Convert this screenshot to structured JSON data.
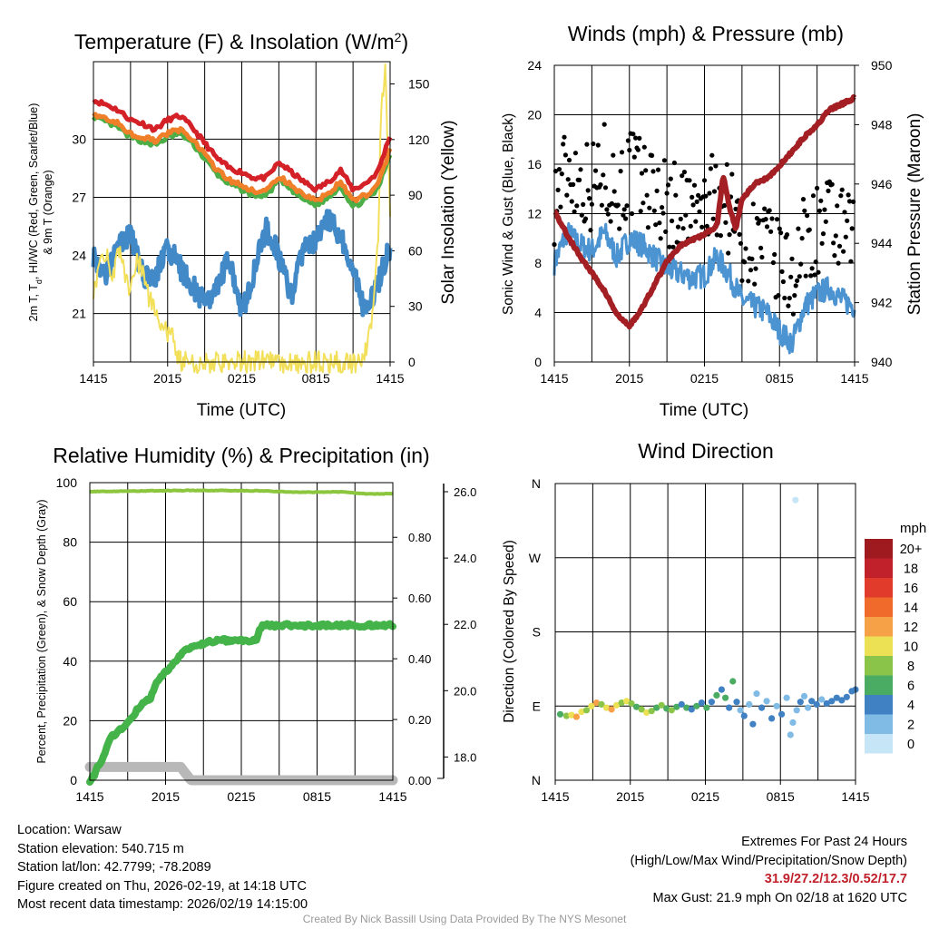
{
  "charts": {
    "temp": {
      "title": "Temperature (F) & Insolation (W/m",
      "title_sup": "2",
      "title_close": ")",
      "ylabel_lines": [
        "2m T, T",
        "d",
        ", HI/WC (Red, Green, Scarlet/Blue)",
        "& 9m T (Orange)"
      ],
      "ylabel_right": "Solar Insolation (Yellow)",
      "xlabel": "Time (UTC)"
    },
    "winds": {
      "title": "Winds (mph) & Pressure (mb)",
      "ylabel": "Sonic Wind & Gust (Blue, Black)",
      "ylabel_right": "Station Pressure (Maroon)",
      "xlabel": "Time (UTC)"
    },
    "rh": {
      "title": "Relative Humidity (%) & Precipitation (in)",
      "ylabel": "Percent, Precipitation (Green), & Snow Depth (Gray)"
    },
    "wdir": {
      "title": "Wind Direction",
      "ylabel": "Direction (Colored By Speed)",
      "legend_title": "mph"
    }
  },
  "chart_data": [
    {
      "type": "line",
      "title": "Temperature (F) & Insolation (W/m2)",
      "xlabel": "Time (UTC)",
      "x_ticks": [
        "1415",
        "2015",
        "0215",
        "0815",
        "1415"
      ],
      "x_hours": [
        0,
        6,
        12,
        18,
        24
      ],
      "ylim": [
        18.5,
        34
      ],
      "y_ticks": [
        21,
        24,
        27,
        30
      ],
      "y2lim": [
        0,
        162
      ],
      "y2_ticks": [
        0,
        30,
        60,
        90,
        120,
        150
      ],
      "series": [
        {
          "name": "2m T (Red)",
          "color": "#d42027",
          "axis": "left",
          "x": [
            0,
            1,
            2,
            3,
            4,
            5,
            6,
            7,
            8,
            9,
            10,
            11,
            12,
            13,
            14,
            15,
            16,
            17,
            18,
            19,
            20,
            21,
            22,
            23,
            24
          ],
          "values": [
            32.0,
            31.8,
            31.5,
            31.0,
            30.8,
            30.5,
            31.0,
            31.2,
            30.6,
            29.8,
            29.0,
            28.5,
            28.3,
            28.0,
            28.0,
            28.8,
            28.3,
            27.8,
            27.4,
            27.8,
            28.4,
            27.4,
            27.7,
            28.3,
            30.2
          ]
        },
        {
          "name": "9m T (Orange)",
          "color": "#f07f2a",
          "axis": "left",
          "x": [
            0,
            1,
            2,
            3,
            4,
            5,
            6,
            7,
            8,
            9,
            10,
            11,
            12,
            13,
            14,
            15,
            16,
            17,
            18,
            19,
            20,
            21,
            22,
            23,
            24
          ],
          "values": [
            31.3,
            31.1,
            30.8,
            30.3,
            30.1,
            29.9,
            30.3,
            30.5,
            30.0,
            29.2,
            28.4,
            27.9,
            27.6,
            27.3,
            27.3,
            28.1,
            27.6,
            27.1,
            26.8,
            27.2,
            27.8,
            26.8,
            27.1,
            27.6,
            29.5
          ]
        },
        {
          "name": "Td (Green)",
          "color": "#4cae46",
          "axis": "left",
          "x": [
            0,
            1,
            2,
            3,
            4,
            5,
            6,
            7,
            8,
            9,
            10,
            11,
            12,
            13,
            14,
            15,
            16,
            17,
            18,
            19,
            20,
            21,
            22,
            23,
            24
          ],
          "values": [
            31.1,
            30.9,
            30.6,
            30.1,
            29.9,
            29.7,
            30.1,
            30.3,
            29.8,
            29.0,
            28.2,
            27.7,
            27.4,
            27.1,
            27.1,
            27.9,
            27.4,
            26.9,
            26.6,
            27.0,
            27.6,
            26.5,
            26.9,
            27.4,
            29.3
          ]
        },
        {
          "name": "Wind Chill (Blue)",
          "color": "#4289c8",
          "axis": "left",
          "x": [
            0,
            1,
            2,
            3,
            4,
            5,
            6,
            7,
            8,
            9,
            10,
            11,
            12,
            13,
            14,
            15,
            16,
            17,
            18,
            19,
            20,
            21,
            22,
            23,
            24
          ],
          "values": [
            24.0,
            23.0,
            24.5,
            25.2,
            23.0,
            22.8,
            24.5,
            23.4,
            22.4,
            21.5,
            22.2,
            24.0,
            21.0,
            23.2,
            25.4,
            24.0,
            21.8,
            24.3,
            24.8,
            26.0,
            25.0,
            23.4,
            21.0,
            22.5,
            24.5
          ]
        },
        {
          "name": "Solar Insolation (Yellow)",
          "color": "#f2e05b",
          "axis": "right",
          "x": [
            0,
            0.5,
            1,
            1.5,
            2,
            2.5,
            3,
            3.5,
            4,
            4.5,
            5,
            5.5,
            6,
            6.5,
            7,
            8,
            10,
            12,
            14,
            16,
            18,
            20,
            21.5,
            22,
            22.5,
            23,
            23.3,
            23.6,
            24
          ],
          "values": [
            40,
            52,
            60,
            45,
            62,
            48,
            38,
            55,
            48,
            35,
            30,
            20,
            14,
            12,
            0,
            0,
            0,
            0,
            0,
            0,
            0,
            0,
            0,
            5,
            20,
            60,
            140,
            160,
            80
          ]
        }
      ]
    },
    {
      "type": "line",
      "title": "Winds (mph) & Pressure (mb)",
      "xlabel": "Time (UTC)",
      "x_ticks": [
        "1415",
        "2015",
        "0215",
        "0815",
        "1415"
      ],
      "x_hours": [
        0,
        6,
        12,
        18,
        24
      ],
      "ylim": [
        0,
        24
      ],
      "y_ticks": [
        0,
        4,
        8,
        12,
        16,
        20,
        24
      ],
      "y2lim": [
        940,
        950
      ],
      "y2_ticks": [
        940,
        942,
        944,
        946,
        948,
        950
      ],
      "series": [
        {
          "name": "Sonic Wind (Blue)",
          "color": "#4c93d1",
          "axis": "left",
          "x": [
            0,
            1,
            2,
            3,
            4,
            5,
            6,
            7,
            8,
            9,
            10,
            11,
            12,
            13,
            14,
            15,
            16,
            17,
            18,
            19,
            20,
            21,
            22,
            23,
            24
          ],
          "values": [
            8.0,
            10.5,
            9.5,
            9.0,
            10.5,
            8.5,
            10.0,
            9.5,
            8.5,
            7.5,
            7.2,
            6.8,
            7.0,
            8.5,
            7.0,
            5.0,
            4.5,
            4.0,
            2.5,
            1.5,
            4.5,
            5.5,
            6.0,
            5.0,
            4.5
          ]
        },
        {
          "name": "Station Pressure (Maroon)",
          "color": "#a31f23",
          "axis": "right",
          "x": [
            0,
            1,
            2,
            3,
            4,
            5,
            6,
            7,
            8,
            9,
            10,
            11,
            12,
            13,
            13.5,
            14,
            14.5,
            15,
            16,
            17,
            18,
            19,
            20,
            21,
            22,
            23,
            24
          ],
          "values": [
            945.1,
            944.3,
            943.6,
            943.0,
            942.4,
            941.6,
            941.2,
            941.8,
            942.6,
            943.4,
            943.9,
            944.1,
            944.3,
            944.6,
            946.3,
            945.2,
            944.5,
            945.5,
            946.0,
            946.2,
            946.6,
            947.1,
            947.6,
            948.0,
            948.5,
            948.7,
            948.9
          ]
        }
      ],
      "gust_series": {
        "name": "Gust (Black)",
        "color": "#000000",
        "count": 240,
        "max_mph": 21.9
      }
    },
    {
      "type": "line",
      "title": "Relative Humidity (%) & Precipitation (in)",
      "x_ticks": [
        "1415",
        "2015",
        "0215",
        "0815",
        "1415"
      ],
      "x_hours": [
        0,
        6,
        12,
        18,
        24
      ],
      "ylim": [
        0,
        100
      ],
      "y_ticks": [
        0,
        20,
        40,
        60,
        80,
        100
      ],
      "y2_ticks": [
        "0.00",
        "0.20",
        "0.40",
        "0.60",
        "0.80"
      ],
      "y2_values": [
        0,
        0.2,
        0.4,
        0.6,
        0.8
      ],
      "y3_ticks": [
        "18.0",
        "20.0",
        "22.0",
        "24.0",
        "26.0"
      ],
      "y3_values": [
        18,
        20,
        22,
        24,
        26
      ],
      "series": [
        {
          "name": "Relative Humidity (Green)",
          "color": "#8cc63f",
          "axis": "left",
          "x": [
            0,
            4,
            8,
            12,
            14,
            16,
            18,
            20,
            22,
            24
          ],
          "values": [
            97,
            97.2,
            97.4,
            97.3,
            97.2,
            96.8,
            96.8,
            96.9,
            96.2,
            96.3
          ]
        },
        {
          "name": "Precipitation (Green)",
          "color": "#44b349",
          "axis": "precip",
          "x": [
            0,
            0.4,
            0.6,
            1.2,
            1.6,
            2.2,
            2.8,
            3.3,
            3.7,
            4.2,
            4.8,
            5.3,
            5.9,
            6.5,
            7.3,
            8.2,
            9.0,
            10.0,
            12.0,
            13.2,
            13.6,
            16.0,
            20.0,
            24.0
          ],
          "values": [
            0,
            0.02,
            0.04,
            0.09,
            0.14,
            0.16,
            0.18,
            0.2,
            0.23,
            0.25,
            0.27,
            0.32,
            0.35,
            0.38,
            0.42,
            0.44,
            0.45,
            0.46,
            0.46,
            0.46,
            0.51,
            0.51,
            0.51,
            0.51
          ]
        },
        {
          "name": "Snow Depth (Gray)",
          "color": "#b8b8b8",
          "axis": "snow",
          "x": [
            0,
            1,
            2,
            3,
            4,
            5,
            6,
            7.2,
            8.0,
            10,
            14,
            18,
            24
          ],
          "values": [
            17.7,
            17.7,
            17.7,
            17.7,
            17.7,
            17.7,
            17.7,
            17.7,
            17.3,
            17.3,
            17.3,
            17.3,
            17.3
          ]
        }
      ]
    },
    {
      "type": "scatter",
      "title": "Wind Direction",
      "ylabel": "Direction (Colored By Speed)",
      "x_ticks": [
        "1415",
        "2015",
        "0215",
        "0815",
        "1415"
      ],
      "x_hours": [
        0,
        6,
        12,
        18,
        24
      ],
      "y_ticks": [
        "N",
        "E",
        "S",
        "W",
        "N"
      ],
      "ylim_degrees": [
        0,
        360
      ],
      "points": [
        [
          0.4,
          80,
          6
        ],
        [
          0.9,
          78,
          8
        ],
        [
          1.3,
          79,
          10
        ],
        [
          1.7,
          77,
          12
        ],
        [
          2.1,
          83,
          10
        ],
        [
          2.5,
          85,
          8
        ],
        [
          2.9,
          90,
          10
        ],
        [
          3.3,
          94,
          12
        ],
        [
          3.7,
          92,
          8
        ],
        [
          4.1,
          88,
          10
        ],
        [
          4.5,
          86,
          12
        ],
        [
          4.9,
          91,
          10
        ],
        [
          5.3,
          94,
          8
        ],
        [
          5.7,
          96,
          10
        ],
        [
          6.1,
          93,
          8
        ],
        [
          6.5,
          89,
          6
        ],
        [
          6.9,
          86,
          8
        ],
        [
          7.3,
          82,
          10
        ],
        [
          7.7,
          84,
          8
        ],
        [
          8.1,
          88,
          6
        ],
        [
          8.5,
          91,
          8
        ],
        [
          8.9,
          87,
          6
        ],
        [
          9.3,
          85,
          8
        ],
        [
          9.7,
          89,
          6
        ],
        [
          10.1,
          92,
          4
        ],
        [
          10.5,
          88,
          6
        ],
        [
          10.9,
          86,
          4
        ],
        [
          11.3,
          90,
          6
        ],
        [
          11.7,
          94,
          4
        ],
        [
          12.1,
          88,
          6
        ],
        [
          12.5,
          95,
          4
        ],
        [
          12.9,
          103,
          6
        ],
        [
          13.3,
          110,
          4
        ],
        [
          13.6,
          100,
          6
        ],
        [
          13.9,
          88,
          4
        ],
        [
          14.2,
          120,
          6
        ],
        [
          14.5,
          95,
          4
        ],
        [
          14.8,
          85,
          2
        ],
        [
          15.1,
          78,
          4
        ],
        [
          15.5,
          92,
          2
        ],
        [
          15.8,
          68,
          4
        ],
        [
          16.1,
          105,
          2
        ],
        [
          16.5,
          88,
          4
        ],
        [
          16.9,
          96,
          2
        ],
        [
          17.3,
          75,
          4
        ],
        [
          17.7,
          90,
          2
        ],
        [
          18.1,
          80,
          4
        ],
        [
          18.5,
          100,
          2
        ],
        [
          18.8,
          55,
          2
        ],
        [
          19.0,
          70,
          2
        ],
        [
          19.3,
          85,
          2
        ],
        [
          19.6,
          95,
          4
        ],
        [
          19.9,
          102,
          2
        ],
        [
          20.2,
          88,
          2
        ],
        [
          20.5,
          96,
          4
        ],
        [
          20.9,
          92,
          4
        ],
        [
          21.3,
          98,
          2
        ],
        [
          21.7,
          93,
          4
        ],
        [
          22.1,
          96,
          4
        ],
        [
          22.5,
          100,
          4
        ],
        [
          22.9,
          97,
          4
        ],
        [
          23.3,
          101,
          4
        ],
        [
          23.7,
          108,
          4
        ],
        [
          24.0,
          110,
          4
        ]
      ]
    }
  ],
  "legend": {
    "title": "mph",
    "labels": [
      "20+",
      "18",
      "16",
      "14",
      "12",
      "10",
      "8",
      "6",
      "4",
      "2",
      "0"
    ],
    "colors": [
      "#9e1a1f",
      "#c1212a",
      "#e03b2b",
      "#f06a2b",
      "#f6a048",
      "#ece154",
      "#8ac54a",
      "#4aab63",
      "#3f81c2",
      "#80bbe6",
      "#c6e6f8"
    ]
  },
  "footer": {
    "location": "Location: Warsaw",
    "elevation": "Station elevation: 540.715 m",
    "latlon": "Station lat/lon: 42.7799; -78.2089",
    "created": "Figure created on Thu, 2026-02-19, at 14:18 UTC",
    "recent": "Most recent data timestamp: 2026/02/19 14:15:00",
    "extremes_title": "Extremes For Past 24 Hours",
    "extremes_desc": "(High/Low/Max Wind/Precipitation/Snow Depth)",
    "extremes_values": "31.9/27.2/12.3/0.52/17.7",
    "max_gust": "Max Gust: 21.9 mph On 02/18 at 1620 UTC",
    "credit": "Created By Nick Bassill Using Data Provided By The NYS Mesonet"
  }
}
